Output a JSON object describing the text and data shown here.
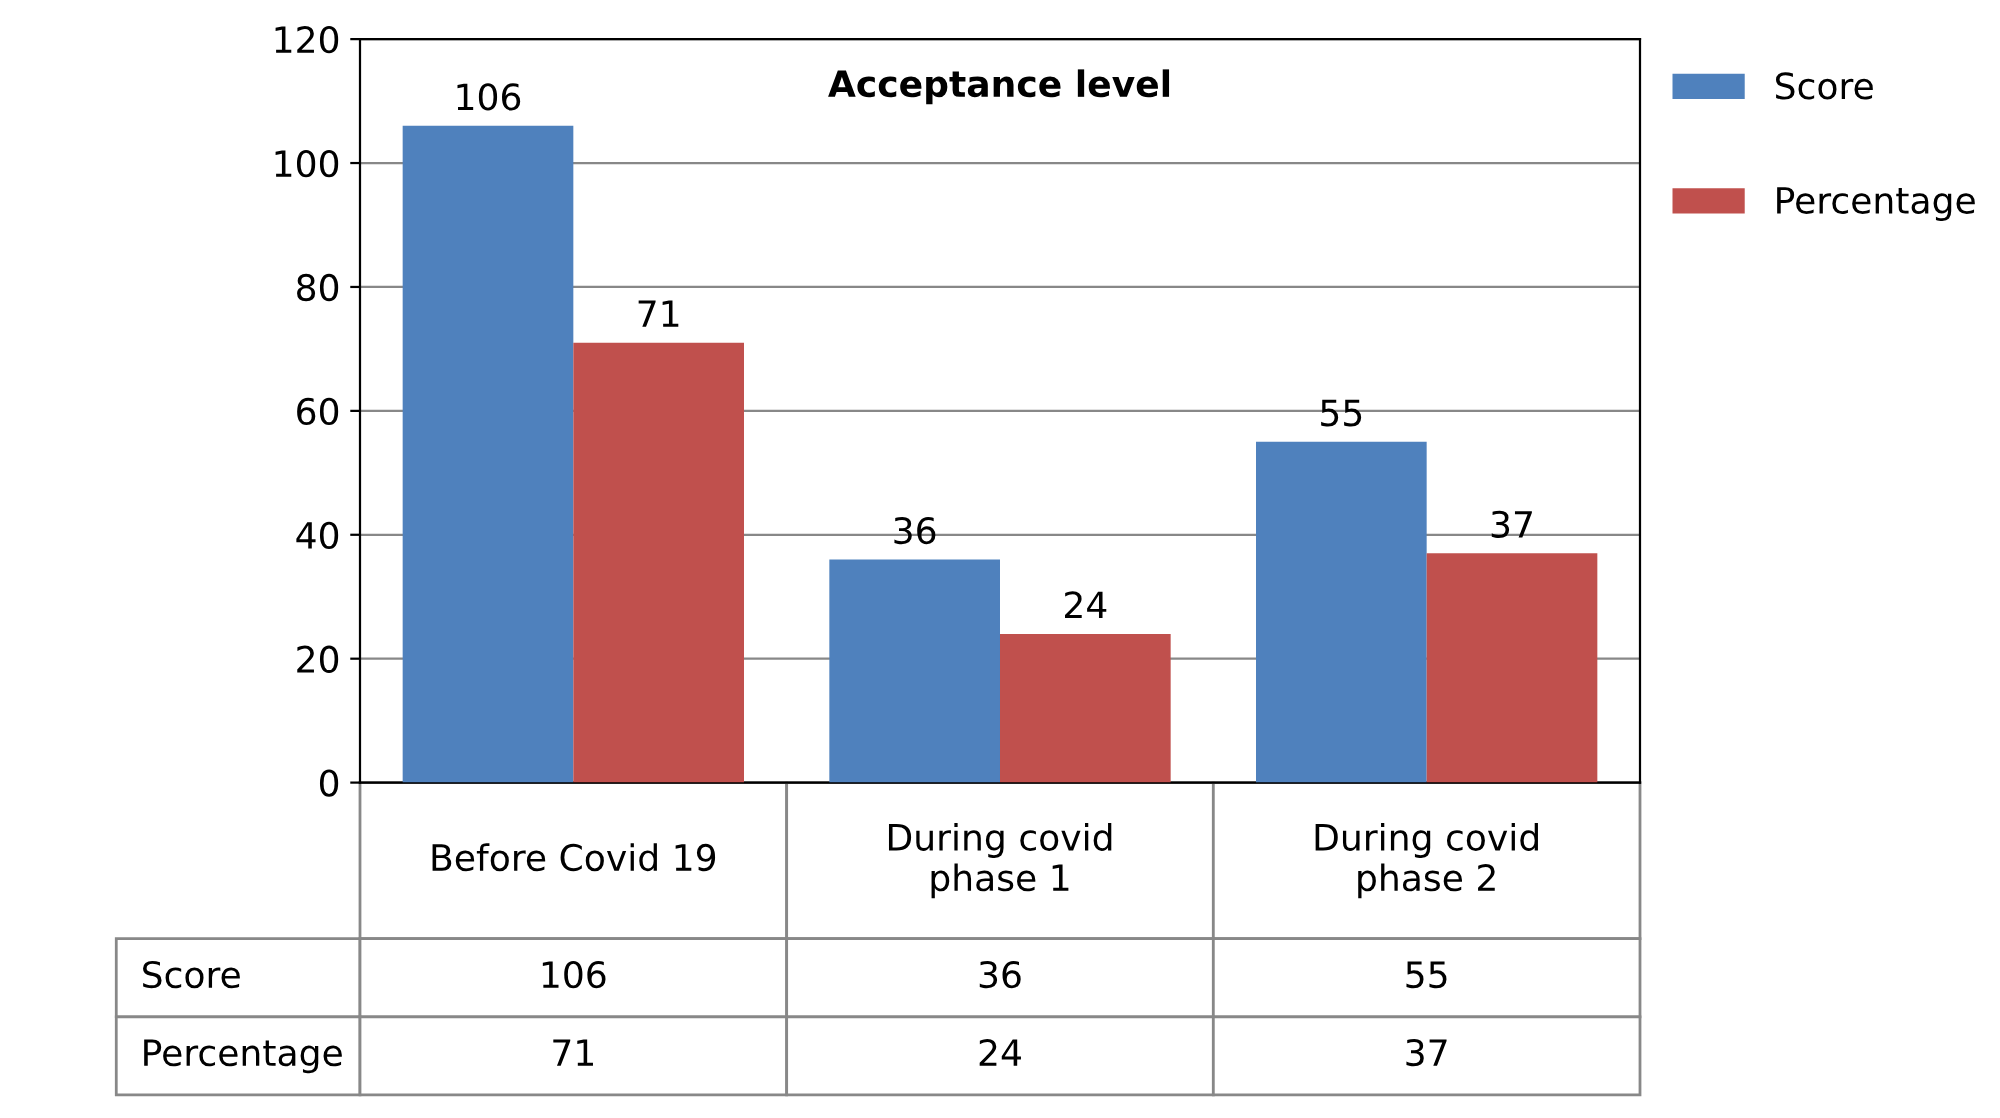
{
  "chart_data": {
    "type": "bar",
    "title": "Acceptance level",
    "categories": [
      "Before Covid 19",
      "During covid\nphase 1",
      "During covid\nphase 2"
    ],
    "series": [
      {
        "name": "Score",
        "color": "#4f81bd",
        "values": [
          106,
          36,
          55
        ],
        "value_labels": [
          "106",
          "36",
          "55"
        ]
      },
      {
        "name": "Percentage",
        "color": "#c0504d",
        "values": [
          71,
          24,
          37
        ],
        "value_labels": [
          "71",
          "24",
          "37"
        ]
      }
    ],
    "annotations": [
      "106",
      "36",
      "55",
      "71",
      "24",
      "37"
    ],
    "ylim": [
      0,
      120
    ],
    "yticks": [
      0,
      20,
      40,
      60,
      80,
      100,
      120
    ],
    "grid": "y",
    "legend": "top right",
    "data_labels": true
  }
}
